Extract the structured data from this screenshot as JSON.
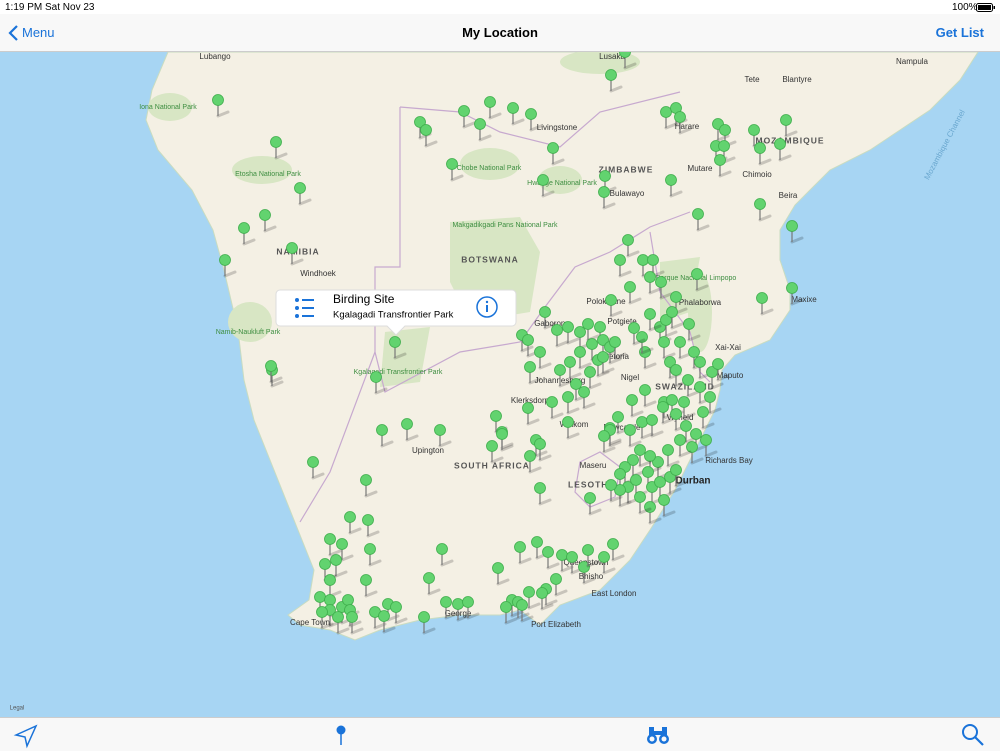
{
  "status_bar": {
    "time": "1:19 PM",
    "date": "Sat Nov 23",
    "battery": "100%"
  },
  "nav": {
    "back": "Menu",
    "title": "My Location",
    "action": "Get List"
  },
  "callout": {
    "title": "Birding Site",
    "subtitle": "Kgalagadi Transfrontier Park"
  },
  "map": {
    "labels": [
      "Lubango",
      "Iona National Park",
      "Lusaka",
      "Tete",
      "Blantyre",
      "Nampula",
      "Livingstone",
      "Harare",
      "MOZAMBIQUE",
      "Mozambique Channel",
      "Etosha National Park",
      "Chobe National Park",
      "Hwange National Park",
      "ZIMBABWE",
      "Mutare",
      "Chimoio",
      "Bulawayo",
      "Beira",
      "Makgadikgadi Pans National Park",
      "NAMIBIA",
      "Windhoek",
      "BOTSWANA",
      "Parque Nacional Limpopo",
      "Phalaborwa",
      "Polokwane",
      "Potgiete",
      "Gaborone",
      "Maxixe",
      "Namib-Naukluft Park",
      "Kgalagadi Transfrontier Park",
      "Xai-Xai",
      "Pretoria",
      "Johannesburg",
      "Nigel",
      "Maputo",
      "SWAZILAND",
      "Klerksdorp",
      "Vryheid",
      "Welkom",
      "Newcastle",
      "Upington",
      "SOUTH AFRICA",
      "Maseru",
      "Richards Bay",
      "LESOTHO",
      "Durban",
      "Queenstown",
      "Bhisho",
      "East London",
      "Cape Town",
      "George",
      "Port Elizabeth",
      "Legal"
    ]
  }
}
